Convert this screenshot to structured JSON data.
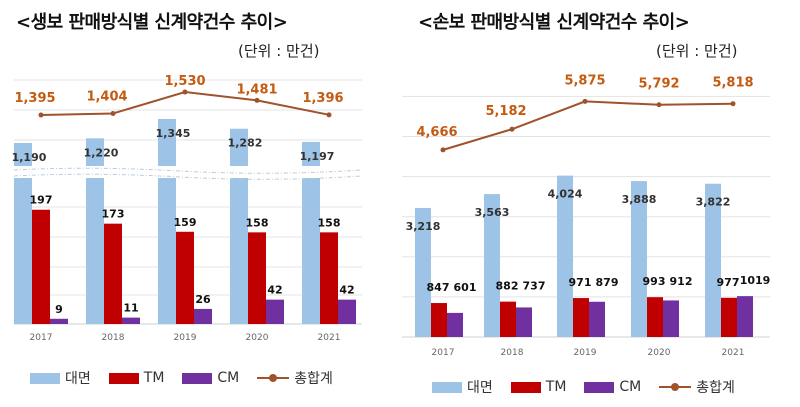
{
  "colors": {
    "face": "#9dc3e6",
    "tm": "#c00000",
    "cm": "#7030a0",
    "total": "#a0522d",
    "total_label": "#c55a11"
  },
  "chart_data": [
    {
      "type": "bar",
      "title": "<생보 판매방식별 신계약건수 추이>",
      "unit": "(단위 : 만건)",
      "categories": [
        "2017",
        "2018",
        "2019",
        "2020",
        "2021"
      ],
      "axis_break": true,
      "series": [
        {
          "name": "대면",
          "values": [
            1190,
            1220,
            1345,
            1282,
            1197
          ]
        },
        {
          "name": "TM",
          "values": [
            197,
            173,
            159,
            158,
            158
          ]
        },
        {
          "name": "CM",
          "values": [
            9,
            11,
            26,
            42,
            42
          ]
        },
        {
          "name": "총합계",
          "type": "line",
          "values": [
            1395,
            1404,
            1530,
            1481,
            1396
          ]
        }
      ],
      "labels": {
        "face": [
          "1,190",
          "1,220",
          "1,345",
          "1,282",
          "1,197"
        ],
        "tm": [
          "197",
          "173",
          "159",
          "158",
          "158"
        ],
        "cm": [
          "9",
          "11",
          "26",
          "42",
          "42"
        ],
        "total": [
          "1,395",
          "1,404",
          "1,530",
          "1,481",
          "1,396"
        ]
      },
      "legend": [
        "대면",
        "TM",
        "CM",
        "총합계"
      ],
      "legend_position": "bottom"
    },
    {
      "type": "bar",
      "title": "<손보 판매방식별 신계약건수 추이>",
      "unit": "(단위 : 만건)",
      "categories": [
        "2017",
        "2018",
        "2019",
        "2020",
        "2021"
      ],
      "ylim": [
        0,
        6000
      ],
      "series": [
        {
          "name": "대면",
          "values": [
            3218,
            3563,
            4024,
            3888,
            3822
          ]
        },
        {
          "name": "TM",
          "values": [
            847,
            882,
            971,
            993,
            977
          ]
        },
        {
          "name": "CM",
          "values": [
            601,
            737,
            879,
            912,
            1019
          ]
        },
        {
          "name": "총합계",
          "type": "line",
          "values": [
            4666,
            5182,
            5875,
            5792,
            5818
          ]
        }
      ],
      "labels": {
        "face": [
          "3,218",
          "3,563",
          "4,024",
          "3,888",
          "3,822"
        ],
        "tm": [
          "847",
          "882",
          "971",
          "993",
          "977"
        ],
        "cm": [
          "601",
          "737",
          "879",
          "912",
          "1019"
        ],
        "total": [
          "4,666",
          "5,182",
          "5,875",
          "5,792",
          "5,818"
        ]
      },
      "legend": [
        "대면",
        "TM",
        "CM",
        "총합계"
      ],
      "legend_position": "bottom"
    }
  ]
}
